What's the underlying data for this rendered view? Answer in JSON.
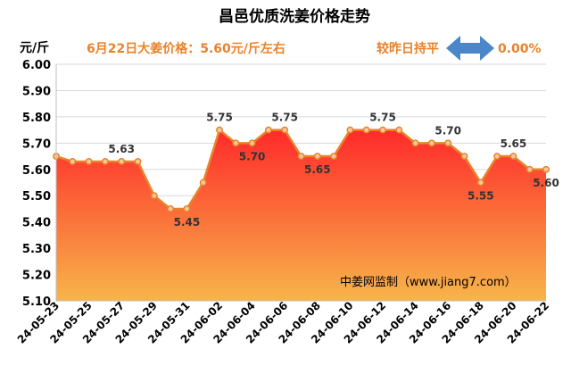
{
  "chart_data": {
    "type": "area",
    "title": "昌邑优质洗姜价格走势",
    "ylabel": "元/斤",
    "annotation_price": "6月22日大姜价格：5.60元/斤左右",
    "annotation_change_label": "较昨日持平",
    "annotation_change_value": "0.00%",
    "watermark": "中姜网监制（www.jiang7.com）",
    "ylim": [
      5.1,
      6.0
    ],
    "ytick_step": 0.1,
    "yticks": [
      "5.10",
      "5.20",
      "5.30",
      "5.40",
      "5.50",
      "5.60",
      "5.70",
      "5.80",
      "5.90",
      "6.00"
    ],
    "grid": true,
    "colors": {
      "line": "#e8832a",
      "marker_fill": "#f7c89a",
      "area_top": "#ff2a2a",
      "area_bottom": "#f7b54a",
      "arrow": "#4a86c8",
      "annotation": "#e8832a",
      "title": "#000000"
    },
    "x": [
      "24-05-23",
      "24-05-24",
      "24-05-25",
      "24-05-26",
      "24-05-27",
      "24-05-28",
      "24-05-29",
      "24-05-30",
      "24-05-31",
      "24-06-01",
      "24-06-02",
      "24-06-03",
      "24-06-04",
      "24-06-05",
      "24-06-06",
      "24-06-07",
      "24-06-08",
      "24-06-09",
      "24-06-10",
      "24-06-11",
      "24-06-12",
      "24-06-13",
      "24-06-14",
      "24-06-15",
      "24-06-16",
      "24-06-17",
      "24-06-18",
      "24-06-19",
      "24-06-20",
      "24-06-21",
      "24-06-22"
    ],
    "xtick_labels": [
      "24-05-23",
      "24-05-25",
      "24-05-27",
      "24-05-29",
      "24-05-31",
      "24-06-02",
      "24-06-04",
      "24-06-06",
      "24-06-08",
      "24-06-10",
      "24-06-12",
      "24-06-14",
      "24-06-16",
      "24-06-18",
      "24-06-20",
      "24-06-22"
    ],
    "values": [
      5.65,
      5.63,
      5.63,
      5.63,
      5.63,
      5.63,
      5.5,
      5.45,
      5.45,
      5.55,
      5.75,
      5.7,
      5.7,
      5.75,
      5.75,
      5.65,
      5.65,
      5.65,
      5.75,
      5.75,
      5.75,
      5.75,
      5.7,
      5.7,
      5.7,
      5.65,
      5.55,
      5.65,
      5.65,
      5.6,
      5.6
    ],
    "data_labels": [
      {
        "index": 4,
        "text": "5.63",
        "pos": "above"
      },
      {
        "index": 8,
        "text": "5.45",
        "pos": "below"
      },
      {
        "index": 10,
        "text": "5.75",
        "pos": "above"
      },
      {
        "index": 12,
        "text": "5.70",
        "pos": "below"
      },
      {
        "index": 14,
        "text": "5.75",
        "pos": "above"
      },
      {
        "index": 16,
        "text": "5.65",
        "pos": "below"
      },
      {
        "index": 20,
        "text": "5.75",
        "pos": "above"
      },
      {
        "index": 24,
        "text": "5.70",
        "pos": "above"
      },
      {
        "index": 26,
        "text": "5.55",
        "pos": "below"
      },
      {
        "index": 28,
        "text": "5.65",
        "pos": "above"
      },
      {
        "index": 30,
        "text": "5.60",
        "pos": "below"
      }
    ]
  }
}
